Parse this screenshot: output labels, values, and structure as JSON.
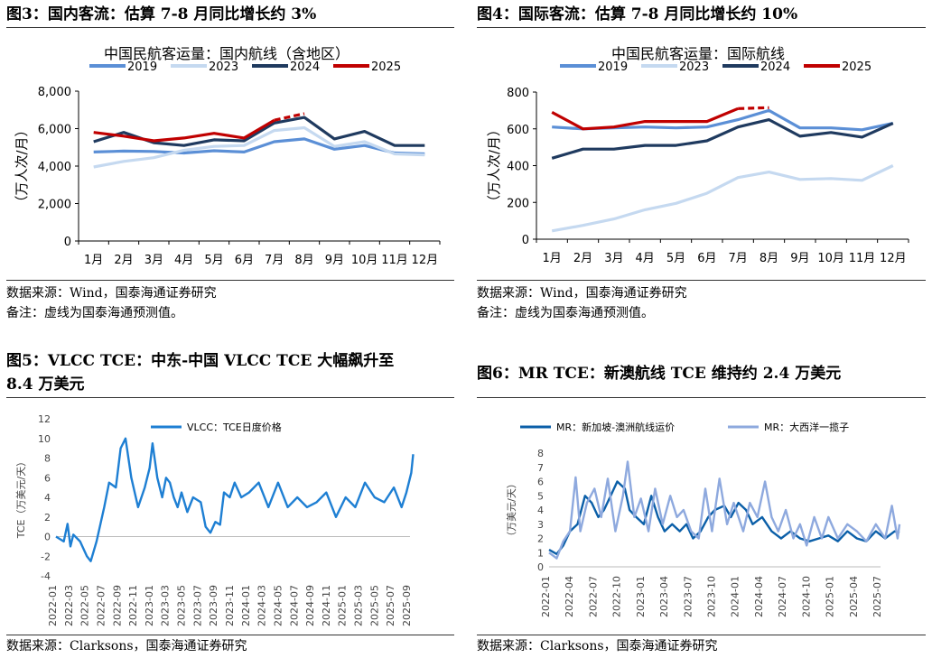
{
  "panels": {
    "p3": {
      "title": "图3：国内客流：估算 7-8 月同比增长约 3%",
      "source": "数据来源：Wind，国泰海通证券研究",
      "note": "备注：虚线为国泰海通预测值。"
    },
    "p4": {
      "title": "图4：国际客流：估算 7-8 月同比增长约 10%",
      "source": "数据来源：Wind，国泰海通证券研究",
      "note": "备注：虚线为国泰海通预测值。"
    },
    "p5": {
      "title_line1": "图5：VLCC TCE：中东-中国 VLCC TCE 大幅飙升至",
      "title_line2": "8.4 万美元",
      "source": "数据来源：Clarksons，国泰海通证券研究"
    },
    "p6": {
      "title": "图6：MR TCE：新澳航线 TCE 维持约 2.4 万美元",
      "source": "数据来源：Clarksons，国泰海通证券研究"
    }
  },
  "chart_data": [
    {
      "type": "line",
      "title": "中国民航客运量：国内航线（含地区）",
      "ylabel": "（万人次/月）",
      "categories": [
        "1月",
        "2月",
        "3月",
        "4月",
        "5月",
        "6月",
        "7月",
        "8月",
        "9月",
        "10月",
        "11月",
        "12月"
      ],
      "ylim": [
        0,
        8000
      ],
      "yticks": [
        "0",
        "2,000",
        "4,000",
        "6,000",
        "8,000"
      ],
      "legend_position": "top",
      "series": [
        {
          "name": "2019",
          "color": "#5b8fd6",
          "values": [
            4750,
            4800,
            4780,
            4700,
            4820,
            4750,
            5300,
            5450,
            4900,
            5100,
            4700,
            4650
          ]
        },
        {
          "name": "2023",
          "color": "#c5d9f0",
          "values": [
            3950,
            4250,
            4450,
            4850,
            5050,
            5100,
            5900,
            6050,
            5050,
            5300,
            4650,
            4600
          ]
        },
        {
          "name": "2024",
          "color": "#1f3a5f",
          "values": [
            5300,
            5800,
            5250,
            5100,
            5400,
            5350,
            6300,
            6600,
            5450,
            5850,
            5100,
            5100
          ]
        },
        {
          "name": "2025",
          "color": "#c00000",
          "values": [
            5800,
            5600,
            5350,
            5500,
            5750,
            5500,
            6450,
            null,
            null,
            null,
            null,
            null
          ],
          "forecast": [
            null,
            null,
            null,
            null,
            null,
            null,
            6450,
            6800,
            null,
            null,
            null,
            null
          ]
        }
      ]
    },
    {
      "type": "line",
      "title": "中国民航客运量：国际航线",
      "ylabel": "（万人次/月）",
      "categories": [
        "1月",
        "2月",
        "3月",
        "4月",
        "5月",
        "6月",
        "7月",
        "8月",
        "9月",
        "10月",
        "11月",
        "12月"
      ],
      "ylim": [
        0,
        800
      ],
      "yticks": [
        "0",
        "200",
        "400",
        "600",
        "800"
      ],
      "legend_position": "top",
      "series": [
        {
          "name": "2019",
          "color": "#5b8fd6",
          "values": [
            610,
            600,
            605,
            610,
            605,
            610,
            650,
            700,
            605,
            605,
            595,
            630
          ]
        },
        {
          "name": "2023",
          "color": "#c5d9f0",
          "values": [
            45,
            75,
            110,
            160,
            195,
            250,
            335,
            365,
            325,
            330,
            320,
            400
          ]
        },
        {
          "name": "2024",
          "color": "#1f3a5f",
          "values": [
            440,
            490,
            490,
            510,
            510,
            535,
            610,
            650,
            560,
            580,
            555,
            630
          ]
        },
        {
          "name": "2025",
          "color": "#c00000",
          "values": [
            690,
            600,
            610,
            640,
            640,
            640,
            710,
            null,
            null,
            null,
            null,
            null
          ],
          "forecast": [
            null,
            null,
            null,
            null,
            null,
            null,
            710,
            715,
            null,
            null,
            null,
            null
          ]
        }
      ]
    },
    {
      "type": "line",
      "ylabel": "TCE（万美元/天）",
      "ylim": [
        -4,
        12
      ],
      "yticks": [
        "-4",
        "-2",
        "0",
        "2",
        "4",
        "6",
        "8",
        "10",
        "12"
      ],
      "xticks": [
        "2022-01",
        "2022-03",
        "2022-05",
        "2022-07",
        "2022-09",
        "2022-11",
        "2023-01",
        "2023-03",
        "2023-05",
        "2023-07",
        "2023-09",
        "2023-11",
        "2024-01",
        "2024-03",
        "2024-05",
        "2024-07",
        "2024-09",
        "2024-11",
        "2025-01",
        "2025-03",
        "2025-05",
        "2025-07",
        "2025-09"
      ],
      "legend_position": "top",
      "series": [
        {
          "name": "VLCC：TCE日度价格",
          "color": "#1e7fd3",
          "x": [
            2022.0,
            2022.08,
            2022.12,
            2022.15,
            2022.18,
            2022.25,
            2022.32,
            2022.36,
            2022.42,
            2022.5,
            2022.55,
            2022.62,
            2022.67,
            2022.72,
            2022.78,
            2022.85,
            2022.92,
            2022.97,
            2023.0,
            2023.05,
            2023.1,
            2023.14,
            2023.18,
            2023.22,
            2023.26,
            2023.3,
            2023.36,
            2023.42,
            2023.5,
            2023.55,
            2023.6,
            2023.65,
            2023.7,
            2023.74,
            2023.8,
            2023.85,
            2023.92,
            2024.0,
            2024.1,
            2024.2,
            2024.3,
            2024.4,
            2024.5,
            2024.6,
            2024.7,
            2024.8,
            2024.9,
            2025.0,
            2025.1,
            2025.2,
            2025.3,
            2025.4,
            2025.5,
            2025.58,
            2025.63,
            2025.68,
            2025.7
          ],
          "values": [
            0.0,
            -0.5,
            1.3,
            -1.0,
            0.2,
            -0.5,
            -2.0,
            -2.5,
            -0.5,
            3.0,
            5.5,
            5.0,
            9.0,
            10.0,
            6.0,
            3.0,
            5.0,
            7.0,
            9.5,
            6.0,
            4.0,
            6.0,
            5.5,
            4.0,
            3.0,
            4.5,
            2.5,
            4.0,
            3.5,
            1.0,
            0.4,
            1.5,
            1.2,
            4.5,
            4.0,
            5.5,
            4.0,
            4.5,
            5.5,
            3.0,
            5.5,
            3.0,
            4.0,
            3.0,
            3.5,
            4.5,
            2.0,
            4.0,
            3.0,
            5.5,
            4.0,
            3.5,
            5.0,
            3.0,
            4.5,
            6.5,
            8.4
          ]
        }
      ]
    },
    {
      "type": "line",
      "ylabel": "（万美元/天）",
      "ylim": [
        0,
        8
      ],
      "yticks": [
        "0",
        "1",
        "2",
        "3",
        "4",
        "5",
        "6",
        "7",
        "8"
      ],
      "xticks": [
        "2022-01",
        "2022-04",
        "2022-07",
        "2022-10",
        "2023-01",
        "2023-04",
        "2023-07",
        "2023-10",
        "2024-01",
        "2024-04",
        "2024-07",
        "2024-10",
        "2025-01",
        "2025-04",
        "2025-07"
      ],
      "legend_position": "top",
      "series": [
        {
          "name": "MR：新加坡-澳洲航线运价",
          "color": "#0b5fa8",
          "x": [
            2022.0,
            2022.08,
            2022.15,
            2022.22,
            2022.3,
            2022.38,
            2022.45,
            2022.52,
            2022.58,
            2022.65,
            2022.72,
            2022.8,
            2022.85,
            2022.92,
            2023.0,
            2023.08,
            2023.15,
            2023.22,
            2023.3,
            2023.38,
            2023.45,
            2023.52,
            2023.6,
            2023.68,
            2023.75,
            2023.85,
            2023.92,
            2024.0,
            2024.08,
            2024.15,
            2024.25,
            2024.35,
            2024.45,
            2024.55,
            2024.65,
            2024.75,
            2024.85,
            2024.95,
            2025.05,
            2025.15,
            2025.25,
            2025.35,
            2025.45,
            2025.55,
            2025.65,
            2025.7
          ],
          "values": [
            1.2,
            0.9,
            1.5,
            2.5,
            3.0,
            5.0,
            4.5,
            3.5,
            4.0,
            5.0,
            6.0,
            5.5,
            4.0,
            3.5,
            3.0,
            5.0,
            3.5,
            2.5,
            3.0,
            2.5,
            3.0,
            2.0,
            2.5,
            3.5,
            4.0,
            4.3,
            3.5,
            4.5,
            4.0,
            3.0,
            3.5,
            2.5,
            2.0,
            2.5,
            2.0,
            1.8,
            2.0,
            2.2,
            1.8,
            2.5,
            2.0,
            1.8,
            2.5,
            2.0,
            2.5,
            2.4
          ]
        },
        {
          "name": "MR：大西洋一揽子",
          "color": "#8ea9de",
          "x": [
            2022.0,
            2022.08,
            2022.15,
            2022.22,
            2022.28,
            2022.33,
            2022.4,
            2022.48,
            2022.55,
            2022.62,
            2022.7,
            2022.78,
            2022.83,
            2022.9,
            2022.97,
            2023.05,
            2023.12,
            2023.2,
            2023.28,
            2023.35,
            2023.42,
            2023.5,
            2023.58,
            2023.65,
            2023.72,
            2023.8,
            2023.88,
            2023.95,
            2024.05,
            2024.12,
            2024.2,
            2024.28,
            2024.35,
            2024.42,
            2024.5,
            2024.58,
            2024.65,
            2024.72,
            2024.8,
            2024.88,
            2024.95,
            2025.05,
            2025.15,
            2025.25,
            2025.35,
            2025.45,
            2025.55,
            2025.62,
            2025.68,
            2025.7
          ],
          "values": [
            1.0,
            0.6,
            1.8,
            2.5,
            6.3,
            2.5,
            4.5,
            5.5,
            3.5,
            6.2,
            2.5,
            5.0,
            7.4,
            3.5,
            4.8,
            2.5,
            5.5,
            3.0,
            5.0,
            3.5,
            4.0,
            2.5,
            2.0,
            5.5,
            2.5,
            6.2,
            3.0,
            4.5,
            2.5,
            4.5,
            3.5,
            6.0,
            3.5,
            2.5,
            4.0,
            2.0,
            3.0,
            1.5,
            3.5,
            2.0,
            3.5,
            2.0,
            3.0,
            2.5,
            1.8,
            3.0,
            2.0,
            4.3,
            2.0,
            3.0
          ]
        }
      ]
    }
  ]
}
